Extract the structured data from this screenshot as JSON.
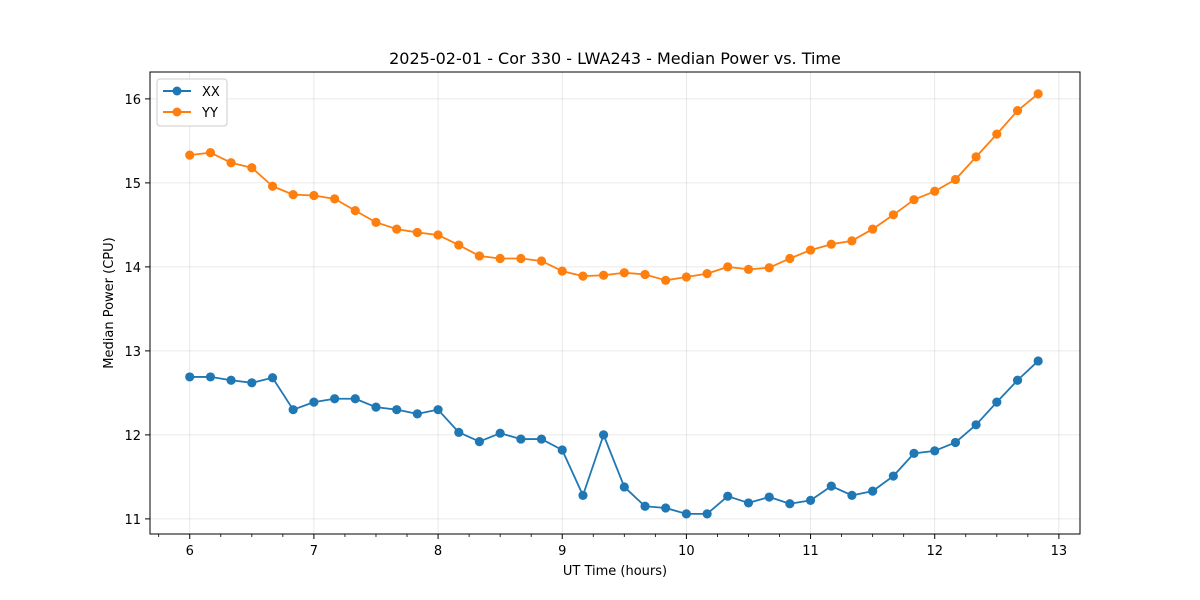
{
  "chart_data": {
    "type": "line",
    "title": "2025-02-01 - Cor 330 - LWA243 - Median Power vs. Time",
    "xlabel": "UT Time (hours)",
    "ylabel": "Median Power (CPU)",
    "xlim": [
      5.68,
      13.17
    ],
    "ylim": [
      10.82,
      16.32
    ],
    "xticks": [
      6,
      7,
      8,
      9,
      10,
      11,
      12,
      13
    ],
    "yticks": [
      11,
      12,
      13,
      14,
      15,
      16
    ],
    "xtick_labels": [
      "6",
      "7",
      "8",
      "9",
      "10",
      "11",
      "12",
      "13"
    ],
    "ytick_labels": [
      "11",
      "12",
      "13",
      "14",
      "15",
      "16"
    ],
    "grid": true,
    "legend_position": "top-left",
    "x": [
      6.0,
      6.167,
      6.333,
      6.5,
      6.667,
      6.833,
      7.0,
      7.167,
      7.333,
      7.5,
      7.667,
      7.833,
      8.0,
      8.167,
      8.333,
      8.5,
      8.667,
      8.833,
      9.0,
      9.167,
      9.333,
      9.5,
      9.667,
      9.833,
      10.0,
      10.167,
      10.333,
      10.5,
      10.667,
      10.833,
      11.0,
      11.167,
      11.333,
      11.5,
      11.667,
      11.833,
      12.0,
      12.167,
      12.333,
      12.5,
      12.667,
      12.833
    ],
    "series": [
      {
        "name": "XX",
        "color": "#1f77b4",
        "values": [
          12.69,
          12.69,
          12.65,
          12.62,
          12.68,
          12.3,
          12.39,
          12.43,
          12.43,
          12.33,
          12.3,
          12.25,
          12.3,
          12.03,
          11.92,
          12.02,
          11.95,
          11.95,
          11.82,
          11.28,
          12.0,
          11.38,
          11.15,
          11.13,
          11.06,
          11.06,
          11.27,
          11.19,
          11.26,
          11.18,
          11.22,
          11.39,
          11.28,
          11.33,
          11.51,
          11.78,
          11.81,
          11.91,
          12.12,
          12.39,
          12.65,
          12.88
        ]
      },
      {
        "name": "YY",
        "color": "#ff7f0e",
        "values": [
          15.33,
          15.36,
          15.24,
          15.18,
          14.96,
          14.86,
          14.85,
          14.81,
          14.67,
          14.53,
          14.45,
          14.41,
          14.38,
          14.26,
          14.13,
          14.1,
          14.1,
          14.07,
          13.95,
          13.89,
          13.9,
          13.93,
          13.91,
          13.84,
          13.88,
          13.92,
          14.0,
          13.97,
          13.99,
          14.1,
          14.2,
          14.27,
          14.31,
          14.45,
          14.62,
          14.8,
          14.9,
          15.04,
          15.31,
          15.58,
          15.86,
          16.06
        ]
      }
    ]
  }
}
